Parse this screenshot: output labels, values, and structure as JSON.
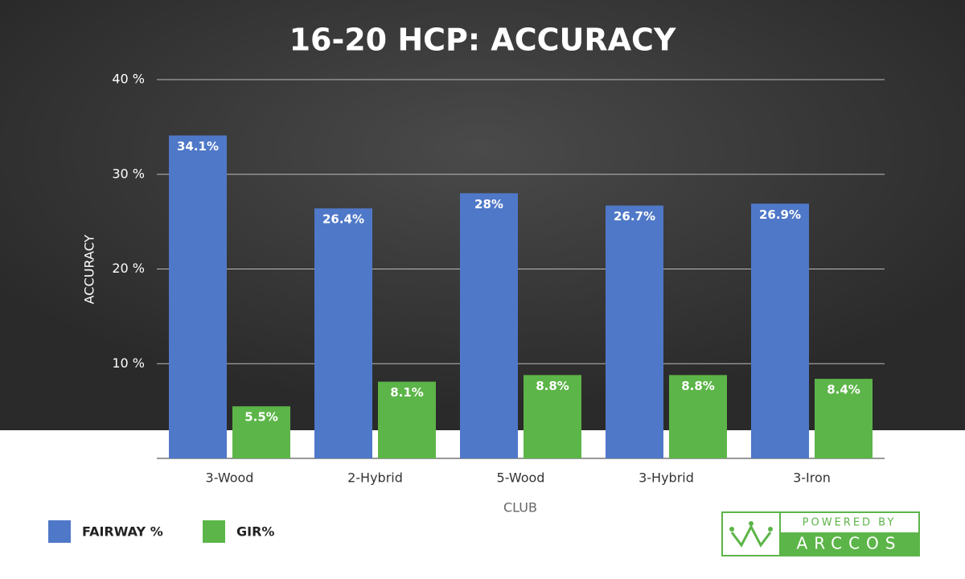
{
  "chart_data": {
    "type": "bar",
    "title": "16-20 HCP: ACCURACY",
    "x_label": "CLUB",
    "y_label": "ACCURACY",
    "categories": [
      "3-Wood",
      "2-Hybrid",
      "5-Wood",
      "3-Hybrid",
      "3-Iron"
    ],
    "series": [
      {
        "name": "FAIRWAY %",
        "color": "#4f78c8",
        "values": [
          34.1,
          26.4,
          28,
          26.7,
          26.9
        ],
        "value_labels": [
          "34.1%",
          "26.4%",
          "28%",
          "26.7%",
          "26.9%"
        ]
      },
      {
        "name": "GIR%",
        "color": "#5cb548",
        "values": [
          5.5,
          8.1,
          8.8,
          8.8,
          8.4
        ],
        "value_labels": [
          "5.5%",
          "8.1%",
          "8.8%",
          "8.8%",
          "8.4%"
        ]
      }
    ],
    "ylim": [
      0,
      40
    ],
    "yticks": [
      {
        "value": 10,
        "label": "10 %"
      },
      {
        "value": 20,
        "label": "20 %"
      },
      {
        "value": 30,
        "label": "30 %"
      },
      {
        "value": 40,
        "label": "40 %"
      }
    ],
    "grid": true,
    "legend": "bottom-left"
  },
  "logo": {
    "tagline": "POWERED BY",
    "name": "ARCCOS"
  }
}
